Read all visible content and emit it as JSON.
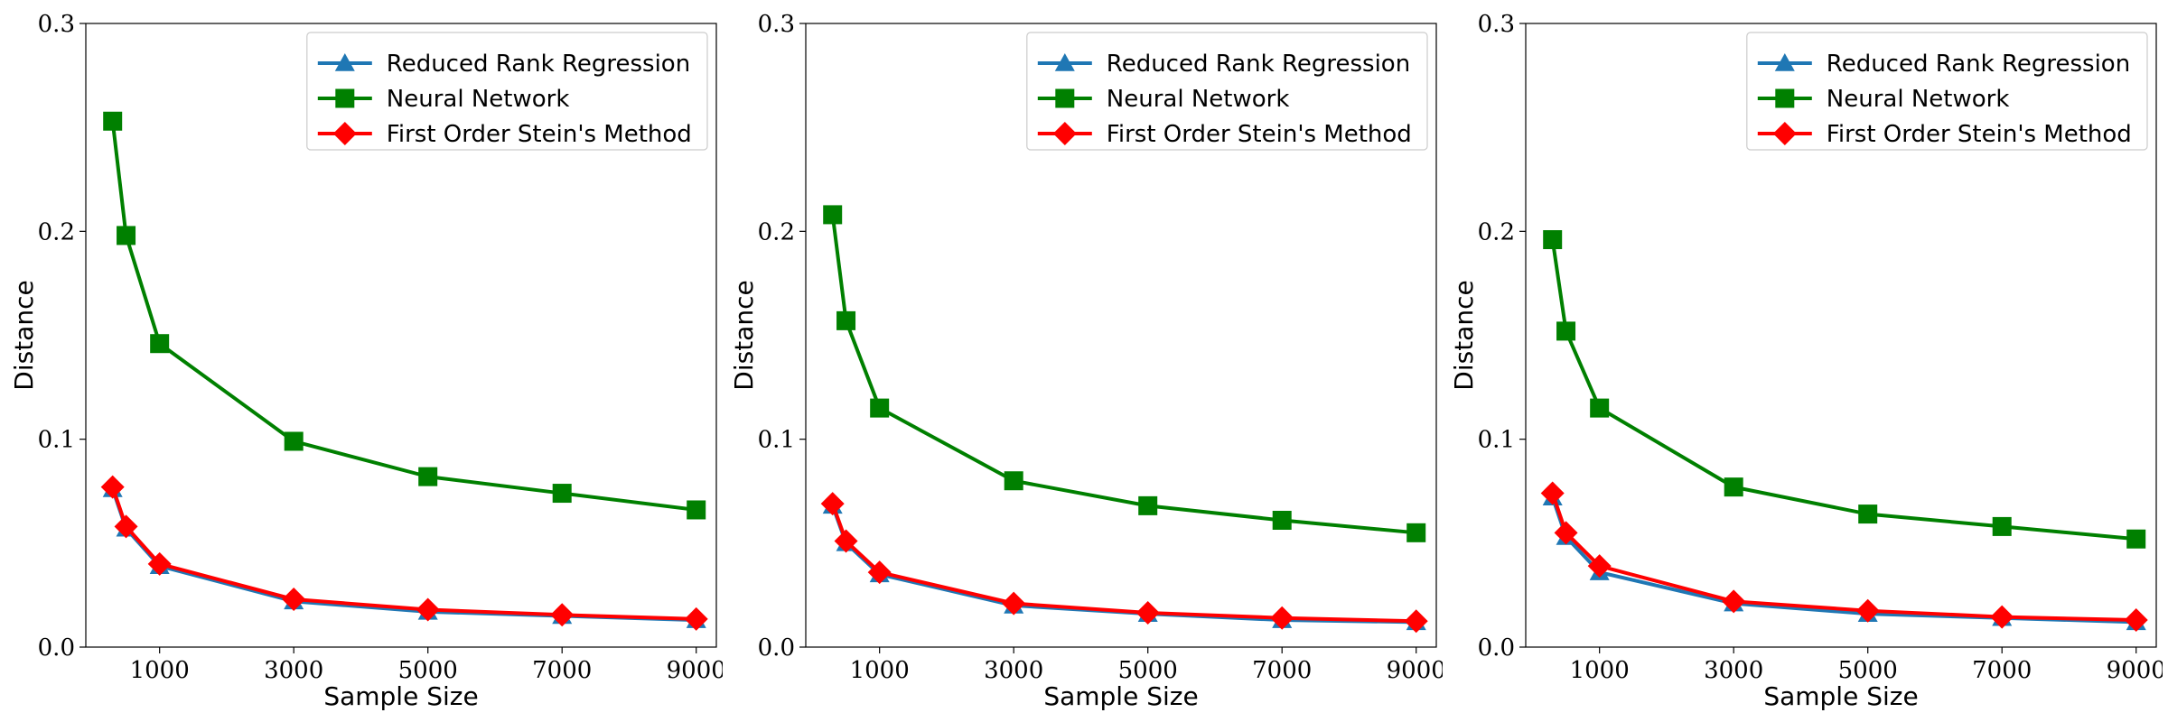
{
  "colors": {
    "reduced_rank": "#1f77b4",
    "neural_network": "#008000",
    "stein": "#ff0000",
    "legend_border": "#cccccc"
  },
  "chart_data": [
    {
      "type": "line",
      "xlabel": "Sample Size",
      "ylabel": "Distance",
      "x": [
        300,
        500,
        1000,
        3000,
        5000,
        7000,
        9000
      ],
      "xticks": [
        1000,
        3000,
        5000,
        7000,
        9000
      ],
      "xtick_labels": [
        "1000",
        "3000",
        "5000",
        "7000",
        "9000"
      ],
      "xlim": [
        -100,
        9300
      ],
      "ylim": [
        0.0,
        0.3
      ],
      "yticks": [
        0.0,
        0.1,
        0.2,
        0.3
      ],
      "ytick_labels": [
        "0.0",
        "0.1",
        "0.2",
        "0.3"
      ],
      "legend_position": "top-right",
      "grid": false,
      "series": [
        {
          "name": "Reduced Rank Regression",
          "marker": "triangle",
          "color": "#1f77b4",
          "values": [
            0.076,
            0.057,
            0.039,
            0.022,
            0.017,
            0.015,
            0.013
          ]
        },
        {
          "name": "Neural Network",
          "marker": "square",
          "color": "#008000",
          "values": [
            0.253,
            0.198,
            0.146,
            0.099,
            0.082,
            0.074,
            0.066
          ]
        },
        {
          "name": "First Order Stein's Method",
          "marker": "diamond",
          "color": "#ff0000",
          "values": [
            0.077,
            0.058,
            0.04,
            0.023,
            0.018,
            0.0155,
            0.0135
          ]
        }
      ]
    },
    {
      "type": "line",
      "xlabel": "Sample Size",
      "ylabel": "Distance",
      "x": [
        300,
        500,
        1000,
        3000,
        5000,
        7000,
        9000
      ],
      "xticks": [
        1000,
        3000,
        5000,
        7000,
        9000
      ],
      "xtick_labels": [
        "1000",
        "3000",
        "5000",
        "7000",
        "9000"
      ],
      "xlim": [
        -100,
        9300
      ],
      "ylim": [
        0.0,
        0.3
      ],
      "yticks": [
        0.0,
        0.1,
        0.2,
        0.3
      ],
      "ytick_labels": [
        "0.0",
        "0.1",
        "0.2",
        "0.3"
      ],
      "legend_position": "top-right",
      "grid": false,
      "series": [
        {
          "name": "Reduced Rank Regression",
          "marker": "triangle",
          "color": "#1f77b4",
          "values": [
            0.068,
            0.05,
            0.035,
            0.02,
            0.016,
            0.013,
            0.012
          ]
        },
        {
          "name": "Neural Network",
          "marker": "square",
          "color": "#008000",
          "values": [
            0.208,
            0.157,
            0.115,
            0.08,
            0.068,
            0.061,
            0.055
          ]
        },
        {
          "name": "First Order Stein's Method",
          "marker": "diamond",
          "color": "#ff0000",
          "values": [
            0.069,
            0.051,
            0.036,
            0.021,
            0.0165,
            0.014,
            0.0125
          ]
        }
      ]
    },
    {
      "type": "line",
      "xlabel": "Sample Size",
      "ylabel": "Distance",
      "x": [
        300,
        500,
        1000,
        3000,
        5000,
        7000,
        9000
      ],
      "xticks": [
        1000,
        3000,
        5000,
        7000,
        9000
      ],
      "xtick_labels": [
        "1000",
        "3000",
        "5000",
        "7000",
        "9000"
      ],
      "xlim": [
        -100,
        9300
      ],
      "ylim": [
        0.0,
        0.3
      ],
      "yticks": [
        0.0,
        0.1,
        0.2,
        0.3
      ],
      "ytick_labels": [
        "0.0",
        "0.1",
        "0.2",
        "0.3"
      ],
      "legend_position": "top-right",
      "grid": false,
      "series": [
        {
          "name": "Reduced Rank Regression",
          "marker": "triangle",
          "color": "#1f77b4",
          "values": [
            0.072,
            0.053,
            0.036,
            0.021,
            0.016,
            0.014,
            0.012
          ]
        },
        {
          "name": "Neural Network",
          "marker": "square",
          "color": "#008000",
          "values": [
            0.196,
            0.152,
            0.115,
            0.077,
            0.064,
            0.058,
            0.052
          ]
        },
        {
          "name": "First Order Stein's Method",
          "marker": "diamond",
          "color": "#ff0000",
          "values": [
            0.074,
            0.055,
            0.039,
            0.022,
            0.0175,
            0.0145,
            0.013
          ]
        }
      ]
    }
  ]
}
